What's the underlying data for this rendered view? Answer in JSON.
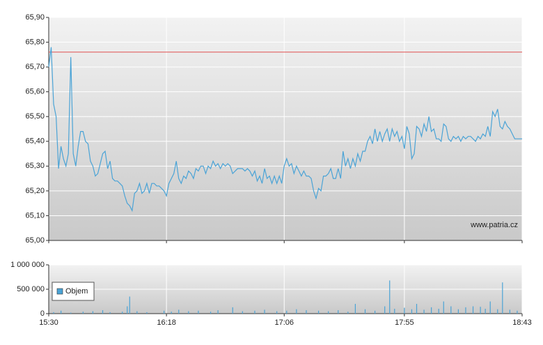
{
  "chart_data": [
    {
      "type": "line",
      "x": [
        "15:30",
        "15:31",
        "15:32",
        "15:33",
        "15:34",
        "15:35",
        "15:36",
        "15:37",
        "15:38",
        "15:39",
        "15:40",
        "15:41",
        "15:42",
        "15:43",
        "15:44",
        "15:45",
        "15:46",
        "15:47",
        "15:48",
        "15:49",
        "15:50",
        "15:51",
        "15:52",
        "15:53",
        "15:54",
        "15:55",
        "15:56",
        "15:57",
        "15:58",
        "15:59",
        "16:00",
        "16:01",
        "16:02",
        "16:03",
        "16:04",
        "16:05",
        "16:06",
        "16:07",
        "16:08",
        "16:09",
        "16:10",
        "16:11",
        "16:12",
        "16:13",
        "16:14",
        "16:15",
        "16:16",
        "16:17",
        "16:18",
        "16:19",
        "16:20",
        "16:21",
        "16:22",
        "16:23",
        "16:24",
        "16:25",
        "16:26",
        "16:27",
        "16:28",
        "16:29",
        "16:30",
        "16:31",
        "16:32",
        "16:33",
        "16:34",
        "16:35",
        "16:36",
        "16:37",
        "16:38",
        "16:39",
        "16:40",
        "16:41",
        "16:42",
        "16:43",
        "16:44",
        "16:45",
        "16:46",
        "16:47",
        "16:48",
        "16:49",
        "16:50",
        "16:51",
        "16:52",
        "16:53",
        "16:54",
        "16:55",
        "16:56",
        "16:57",
        "16:58",
        "16:59",
        "17:00",
        "17:01",
        "17:02",
        "17:03",
        "17:04",
        "17:05",
        "17:06",
        "17:07",
        "17:08",
        "17:09",
        "17:10",
        "17:11",
        "17:12",
        "17:13",
        "17:14",
        "17:15",
        "17:16",
        "17:17",
        "17:18",
        "17:19",
        "17:20",
        "17:21",
        "17:22",
        "17:23",
        "17:24",
        "17:25",
        "17:26",
        "17:27",
        "17:28",
        "17:29",
        "17:30",
        "17:31",
        "17:32",
        "17:33",
        "17:34",
        "17:35",
        "17:36",
        "17:37",
        "17:38",
        "17:39",
        "17:40",
        "17:41",
        "17:42",
        "17:43",
        "17:44",
        "17:45",
        "17:46",
        "17:47",
        "17:48",
        "17:49",
        "17:50",
        "17:51",
        "17:52",
        "17:53",
        "17:54",
        "17:55",
        "17:56",
        "17:57",
        "17:58",
        "17:59",
        "18:00",
        "18:01",
        "18:02",
        "18:03",
        "18:04",
        "18:05",
        "18:06",
        "18:07",
        "18:08",
        "18:09",
        "18:10",
        "18:11",
        "18:12",
        "18:13",
        "18:14",
        "18:15",
        "18:16",
        "18:17",
        "18:18",
        "18:19",
        "18:20",
        "18:21",
        "18:22",
        "18:23",
        "18:24",
        "18:25",
        "18:26",
        "18:27",
        "18:28",
        "18:29",
        "18:30",
        "18:31",
        "18:32",
        "18:33",
        "18:34",
        "18:35",
        "18:36",
        "18:37",
        "18:38",
        "18:39",
        "18:40",
        "18:41",
        "18:42",
        "18:43"
      ],
      "series": [
        {
          "color": "#4aa3d6",
          "values": [
            65.7,
            65.78,
            65.55,
            65.5,
            65.29,
            65.38,
            65.33,
            65.3,
            65.35,
            65.74,
            65.35,
            65.3,
            65.38,
            65.44,
            65.44,
            65.4,
            65.39,
            65.32,
            65.3,
            65.26,
            65.27,
            65.31,
            65.35,
            65.36,
            65.29,
            65.32,
            65.25,
            65.24,
            65.24,
            65.23,
            65.22,
            65.18,
            65.15,
            65.14,
            65.12,
            65.19,
            65.2,
            65.23,
            65.19,
            65.2,
            65.23,
            65.19,
            65.23,
            65.23,
            65.22,
            65.22,
            65.21,
            65.2,
            65.18,
            65.23,
            65.25,
            65.27,
            65.32,
            65.25,
            65.23,
            65.26,
            65.25,
            65.28,
            65.27,
            65.25,
            65.29,
            65.28,
            65.3,
            65.3,
            65.27,
            65.3,
            65.29,
            65.32,
            65.3,
            65.31,
            65.29,
            65.31,
            65.3,
            65.31,
            65.3,
            65.27,
            65.28,
            65.29,
            65.29,
            65.29,
            65.28,
            65.29,
            65.28,
            65.26,
            65.28,
            65.24,
            65.26,
            65.23,
            65.29,
            65.25,
            65.26,
            65.23,
            65.26,
            65.23,
            65.26,
            65.23,
            65.3,
            65.33,
            65.3,
            65.31,
            65.27,
            65.3,
            65.28,
            65.26,
            65.28,
            65.26,
            65.26,
            65.25,
            65.2,
            65.17,
            65.21,
            65.2,
            65.26,
            65.26,
            65.27,
            65.29,
            65.25,
            65.25,
            65.29,
            65.25,
            65.36,
            65.3,
            65.33,
            65.29,
            65.33,
            65.3,
            65.35,
            65.32,
            65.36,
            65.36,
            65.4,
            65.42,
            65.39,
            65.45,
            65.4,
            65.44,
            65.4,
            65.43,
            65.45,
            65.4,
            65.45,
            65.42,
            65.44,
            65.4,
            65.42,
            65.37,
            65.46,
            65.43,
            65.33,
            65.35,
            65.46,
            65.45,
            65.42,
            65.47,
            65.44,
            65.5,
            65.44,
            65.45,
            65.41,
            65.41,
            65.4,
            65.47,
            65.46,
            65.41,
            65.4,
            65.42,
            65.41,
            65.42,
            65.4,
            65.42,
            65.41,
            65.42,
            65.42,
            65.41,
            65.4,
            65.42,
            65.41,
            65.43,
            65.42,
            65.46,
            65.42,
            65.52,
            65.5,
            65.53,
            65.46,
            65.45,
            65.48,
            65.46,
            65.45,
            65.43,
            65.41,
            65.41,
            65.41,
            65.41
          ]
        }
      ],
      "reference_line": {
        "value": 65.76,
        "color": "#e05050"
      },
      "xlim": [
        "15:30",
        "18:43"
      ],
      "xticks": [
        "15:30",
        "16:18",
        "17:06",
        "17:55",
        "18:43"
      ],
      "ylim": [
        65.0,
        65.9
      ],
      "yticks": [
        {
          "value": 65.0,
          "label": "65,00"
        },
        {
          "value": 65.1,
          "label": "65,10"
        },
        {
          "value": 65.2,
          "label": "65,20"
        },
        {
          "value": 65.3,
          "label": "65,30"
        },
        {
          "value": 65.4,
          "label": "65,40"
        },
        {
          "value": 65.5,
          "label": "65,50"
        },
        {
          "value": 65.6,
          "label": "65,60"
        },
        {
          "value": 65.7,
          "label": "65,70"
        },
        {
          "value": 65.8,
          "label": "65,80"
        },
        {
          "value": 65.9,
          "label": "65,90"
        }
      ],
      "grid": true,
      "annotation": "www.patria.cz"
    },
    {
      "type": "bar",
      "x": [
        "15:32",
        "15:35",
        "15:39",
        "15:44",
        "15:48",
        "15:52",
        "15:55",
        "16:00",
        "16:02",
        "16:03",
        "16:06",
        "16:10",
        "16:17",
        "16:20",
        "16:23",
        "16:27",
        "16:31",
        "16:36",
        "16:39",
        "16:45",
        "16:49",
        "16:54",
        "16:58",
        "17:03",
        "17:07",
        "17:11",
        "17:15",
        "17:20",
        "17:24",
        "17:28",
        "17:32",
        "17:35",
        "17:39",
        "17:43",
        "17:47",
        "17:49",
        "17:51",
        "17:55",
        "17:58",
        "18:00",
        "18:03",
        "18:06",
        "18:09",
        "18:11",
        "18:14",
        "18:17",
        "18:20",
        "18:23",
        "18:26",
        "18:28",
        "18:30",
        "18:33",
        "18:35",
        "18:38",
        "18:41"
      ],
      "series": [
        {
          "name": "Objem",
          "color": "#4aa3d6",
          "values": [
            30000,
            60000,
            20000,
            40000,
            50000,
            70000,
            30000,
            40000,
            150000,
            350000,
            50000,
            30000,
            60000,
            40000,
            80000,
            50000,
            60000,
            40000,
            70000,
            130000,
            50000,
            60000,
            80000,
            50000,
            60000,
            90000,
            70000,
            60000,
            50000,
            70000,
            40000,
            200000,
            90000,
            60000,
            150000,
            680000,
            100000,
            120000,
            90000,
            200000,
            80000,
            130000,
            100000,
            250000,
            150000,
            90000,
            130000,
            150000,
            140000,
            100000,
            250000,
            90000,
            640000,
            80000,
            60000
          ]
        }
      ],
      "xlim": [
        "15:30",
        "18:43"
      ],
      "xticks": [
        "15:30",
        "16:18",
        "17:06",
        "17:55",
        "18:43"
      ],
      "ylim": [
        0,
        1000000
      ],
      "yticks": [
        0,
        {
          "value": 500000,
          "label": "500 000"
        },
        {
          "value": 1000000,
          "label": "1 000 000"
        }
      ],
      "grid": true,
      "legend": "upper-left"
    }
  ]
}
